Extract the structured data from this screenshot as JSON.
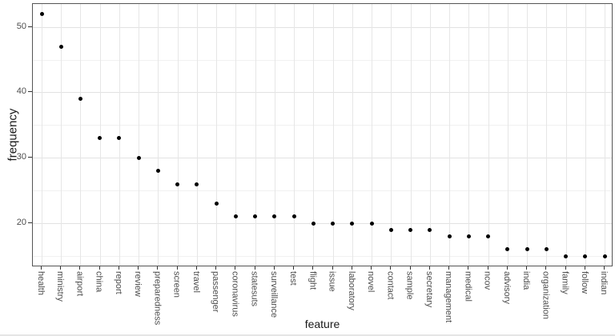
{
  "chart_data": {
    "type": "scatter",
    "xlabel": "feature",
    "ylabel": "frequency",
    "categories": [
      "health",
      "ministry",
      "airport",
      "china",
      "report",
      "review",
      "preparedness",
      "screen",
      "travel",
      "passenger",
      "coronavirus",
      "statesuts",
      "surveillance",
      "test",
      "flight",
      "issue",
      "laboratory",
      "novel",
      "contact",
      "sample",
      "secretary",
      "management",
      "medical",
      "ncov",
      "advisory",
      "india",
      "organization",
      "family",
      "follow",
      "indian"
    ],
    "values": [
      52,
      47,
      39,
      33,
      33,
      30,
      28,
      26,
      26,
      23,
      21,
      21,
      21,
      21,
      20,
      20,
      20,
      20,
      19,
      19,
      19,
      18,
      18,
      18,
      16,
      16,
      16,
      15,
      15,
      15
    ],
    "ylim": [
      13.3,
      53.5
    ],
    "yticks": [
      20,
      30,
      40,
      50
    ],
    "yticks_minor": [
      15,
      25,
      35,
      45
    ],
    "grid": "major-and-minor",
    "legend": "none",
    "point_color": "#000000",
    "colors": {
      "panel_border": "#555555",
      "grid_major": "#e2e2e2",
      "grid_minor": "#f1f1f1",
      "grid_vertical": "#e6e6e6",
      "tick_label": "#4d4d4d",
      "axis_title": "#1a1a1a",
      "background": "#ffffff"
    }
  }
}
